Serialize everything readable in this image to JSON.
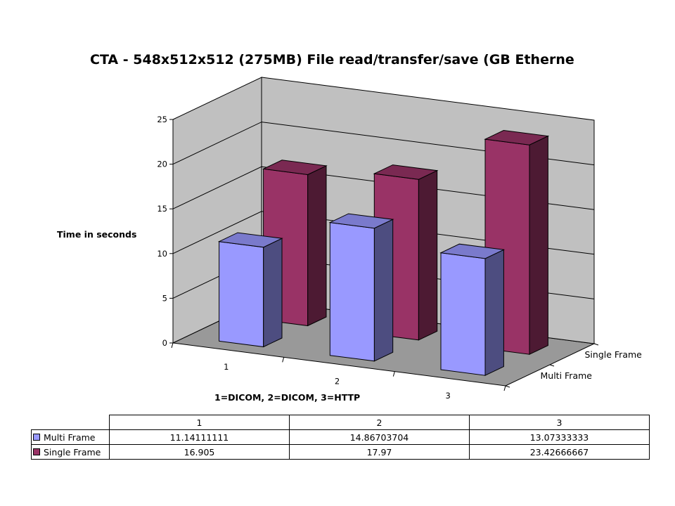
{
  "chart_data": {
    "type": "bar",
    "title": "CTA - 548x512x512 (275MB) File read/transfer/save (GB Etherne",
    "xlabel": "1=DICOM, 2=DICOM, 3=HTTP",
    "ylabel": "Time in seconds",
    "categories": [
      "1",
      "2",
      "3"
    ],
    "yticks": [
      "0",
      "5",
      "10",
      "15",
      "20",
      "25"
    ],
    "ylim": [
      0,
      25
    ],
    "grid": true,
    "series": [
      {
        "name": "Multi Frame",
        "color": "#9999ff",
        "values": [
          11.14111111,
          14.86703704,
          13.07333333
        ],
        "display_values": [
          "11.14111111",
          "14.86703704",
          "13.07333333"
        ]
      },
      {
        "name": "Single Frame",
        "color": "#993366",
        "values": [
          16.905,
          17.97,
          23.42666667
        ],
        "display_values": [
          "16.905",
          "17.97",
          "23.42666667"
        ]
      }
    ]
  }
}
